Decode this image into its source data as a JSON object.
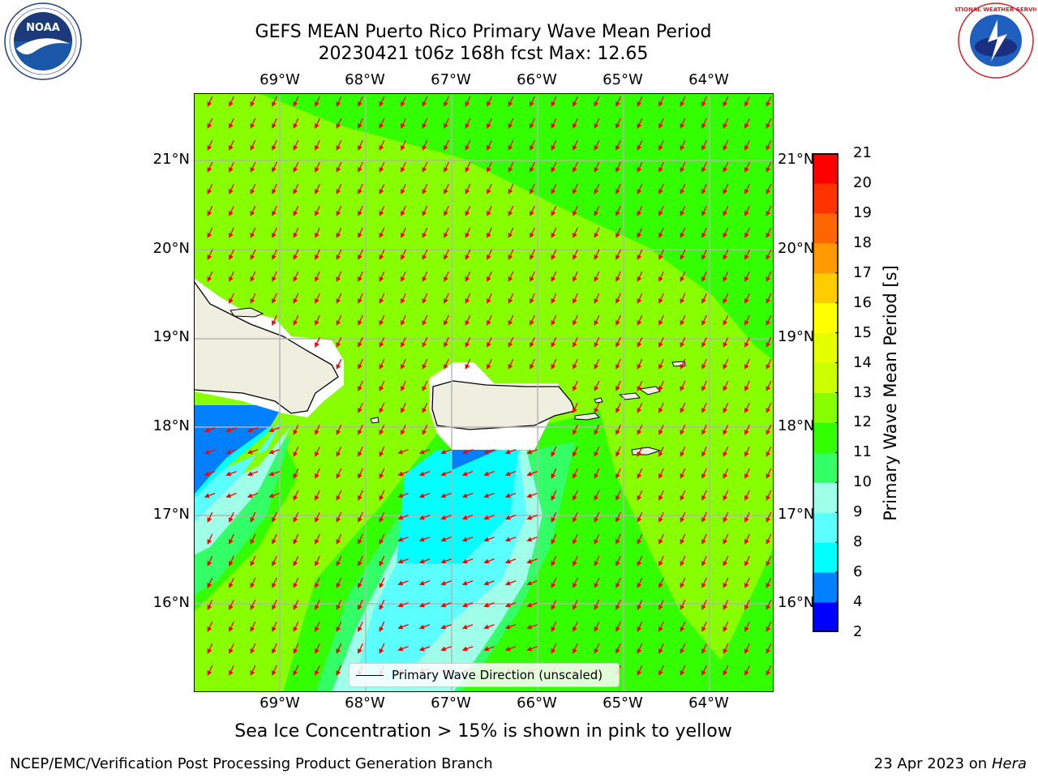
{
  "title": {
    "line1": "GEFS MEAN Puerto Rico Primary Wave Mean Period",
    "line2": "20230421 t06z 168h fcst   Max: 12.65"
  },
  "map": {
    "lon_labels": [
      "69°W",
      "68°W",
      "67°W",
      "66°W",
      "65°W",
      "64°W"
    ],
    "lat_labels": [
      "21°N",
      "20°N",
      "19°N",
      "18°N",
      "17°N",
      "16°N"
    ],
    "lon_range": [
      -69.0,
      -62.3
    ],
    "lat_range": [
      15.1,
      21.7
    ],
    "field_colors": {
      "p6_8": "#00ffff",
      "p8_9": "#5cffff",
      "p9_10": "#a0ffe8",
      "p10_11": "#33ff66",
      "p11_12": "#33ff00",
      "p12_13": "#88ff00",
      "p4_6": "#0080ff",
      "land": "#efefdf",
      "arrows": "#ff0000"
    },
    "legend_label": "Primary Wave Direction (unscaled)"
  },
  "colorbar": {
    "title": "Primary Wave Mean Period [s]",
    "ticks": [
      "2",
      "4",
      "6",
      "8",
      "9",
      "10",
      "11",
      "12",
      "13",
      "14",
      "15",
      "16",
      "17",
      "18",
      "19",
      "20",
      "21"
    ],
    "colors": [
      "#0000ff",
      "#0080ff",
      "#00ffff",
      "#5cffff",
      "#a0ffe8",
      "#33ff66",
      "#33ff00",
      "#88ff00",
      "#ccff00",
      "#e6ff00",
      "#ffff00",
      "#ffcc00",
      "#ff9900",
      "#ff6600",
      "#ff3300",
      "#ff0000"
    ]
  },
  "ice_note": "Sea Ice Concentration > 15% is shown in pink to yellow",
  "footer": {
    "left": "NCEP/EMC/Verification Post Processing Product Generation Branch",
    "right_prefix": "23 Apr 2023 on ",
    "right_machine": "Hera"
  },
  "logos": {
    "noaa_text": "NOAA",
    "nws_text": "NATIONAL WEATHER SERVICE"
  }
}
